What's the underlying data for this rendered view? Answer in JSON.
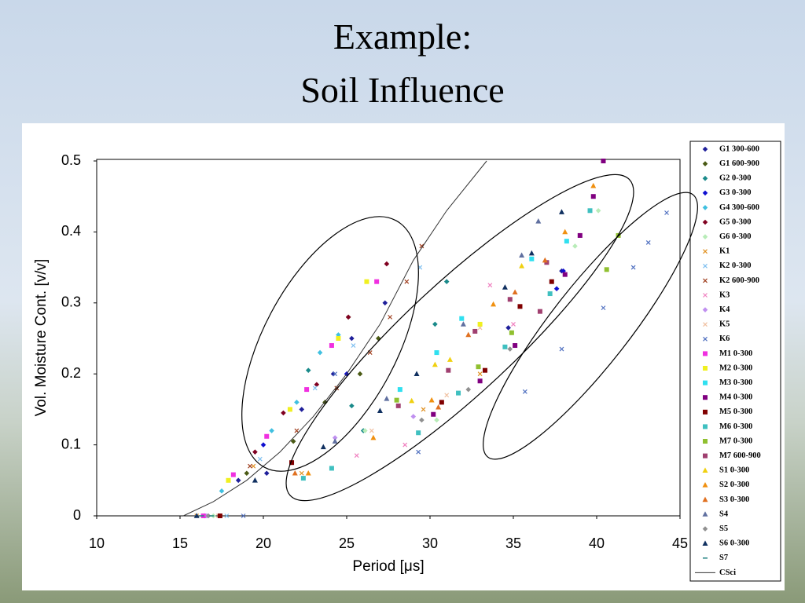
{
  "slide_title": [
    "Example:",
    "Soil Influence"
  ],
  "chart_data": {
    "type": "scatter",
    "ylabel": "Vol. Moisture Cont. [v/v]",
    "xlabel": "Period [μs]",
    "xlim": [
      10,
      45
    ],
    "ylim": [
      0,
      0.5
    ],
    "xticks": [
      10,
      15,
      20,
      25,
      30,
      35,
      40,
      45
    ],
    "yticks": [
      0,
      0.1,
      0.2,
      0.3,
      0.4,
      0.5
    ],
    "legend": "right",
    "series": [
      {
        "name": "G1 300-600",
        "color": "#1f1f9a",
        "marker": "diamond",
        "x": [
          18.5,
          20.2,
          22.3,
          24.2,
          25.3,
          27.3,
          34.7,
          37.9
        ],
        "values": [
          0.05,
          0.06,
          0.15,
          0.2,
          0.25,
          0.3,
          0.265,
          0.345
        ]
      },
      {
        "name": "G1 600-900",
        "color": "#4a5a14",
        "marker": "diamond",
        "x": [
          19,
          21.8,
          23.7,
          25.8,
          26.9,
          25.1
        ],
        "values": [
          0.06,
          0.105,
          0.16,
          0.2,
          0.25,
          0.28
        ]
      },
      {
        "name": "G2 0-300",
        "color": "#1a8a8a",
        "marker": "diamond",
        "x": [
          22.7,
          25.3,
          26,
          30.3,
          31
        ],
        "values": [
          0.205,
          0.155,
          0.12,
          0.27,
          0.33
        ]
      },
      {
        "name": "G3 0-300",
        "color": "#1010d0",
        "marker": "diamond",
        "x": [
          16.5,
          20,
          25,
          37.6,
          38
        ],
        "values": [
          0,
          0.1,
          0.2,
          0.32,
          0.345
        ]
      },
      {
        "name": "G4 300-600",
        "color": "#40c0e0",
        "marker": "diamond",
        "x": [
          17.5,
          20.5,
          22,
          23.4,
          24.5
        ],
        "values": [
          0.035,
          0.12,
          0.16,
          0.23,
          0.255
        ]
      },
      {
        "name": "G5 0-300",
        "color": "#800020",
        "marker": "diamond",
        "x": [
          19.5,
          21.2,
          23.2,
          25.1,
          27.4
        ],
        "values": [
          0.09,
          0.145,
          0.185,
          0.28,
          0.355
        ]
      },
      {
        "name": "G6 0-300",
        "color": "#b8ecb8",
        "marker": "diamond",
        "x": [
          17,
          26.1,
          30.4,
          38.7,
          40.1
        ],
        "values": [
          0,
          0.12,
          0.135,
          0.38,
          0.43
        ]
      },
      {
        "name": "K1",
        "color": "#e09020",
        "marker": "x",
        "x": [
          16,
          19.4,
          22.3,
          29.6,
          33
        ],
        "values": [
          0,
          0.07,
          0.06,
          0.15,
          0.2
        ]
      },
      {
        "name": "K2 0-300",
        "color": "#80c0f0",
        "marker": "x",
        "x": [
          17.8,
          19.8,
          23.1,
          25.4,
          29.4
        ],
        "values": [
          0,
          0.08,
          0.18,
          0.24,
          0.35
        ]
      },
      {
        "name": "K2 600-900",
        "color": "#a04020",
        "marker": "x",
        "x": [
          19.2,
          22,
          24.4,
          26.4,
          27.6,
          29.5,
          28.6
        ],
        "values": [
          0.07,
          0.12,
          0.18,
          0.23,
          0.28,
          0.38,
          0.33
        ]
      },
      {
        "name": "K3",
        "color": "#f080c0",
        "marker": "x",
        "x": [
          25.6,
          28.5,
          33.6,
          35
        ],
        "values": [
          0.085,
          0.1,
          0.325,
          0.27
        ]
      },
      {
        "name": "K4",
        "color": "#c090f0",
        "marker": "diamond",
        "x": [
          16.6,
          24.3,
          29
        ],
        "values": [
          0,
          0.11,
          0.14
        ]
      },
      {
        "name": "K5",
        "color": "#f0c0a0",
        "marker": "x",
        "x": [
          17.3,
          26.5,
          31,
          33
        ],
        "values": [
          0,
          0.12,
          0.17,
          0.265
        ]
      },
      {
        "name": "K6",
        "color": "#5070c0",
        "marker": "x",
        "x": [
          18.8,
          24.3,
          29.3,
          35.7,
          37.9,
          40.4,
          42.2,
          43.1,
          44.2
        ],
        "values": [
          0,
          0.2,
          0.09,
          0.175,
          0.235,
          0.293,
          0.35,
          0.385,
          0.427
        ]
      },
      {
        "name": "M1 0-300",
        "color": "#f030e0",
        "marker": "square",
        "x": [
          16.4,
          18.2,
          20.2,
          22.6,
          24.1,
          26.8
        ],
        "values": [
          0,
          0.058,
          0.112,
          0.178,
          0.24,
          0.33
        ]
      },
      {
        "name": "M2 0-300",
        "color": "#f0f020",
        "marker": "square",
        "x": [
          17.9,
          21.6,
          24.5,
          26.2,
          33
        ],
        "values": [
          0.05,
          0.15,
          0.25,
          0.33,
          0.27
        ]
      },
      {
        "name": "M3 0-300",
        "color": "#30e0f0",
        "marker": "square",
        "x": [
          28.2,
          30.4,
          31.9,
          36.1,
          38.2
        ],
        "values": [
          0.178,
          0.23,
          0.278,
          0.362,
          0.387
        ]
      },
      {
        "name": "M4 0-300",
        "color": "#800080",
        "marker": "square",
        "x": [
          30.2,
          33,
          35.1,
          38.1,
          39.8,
          40.4,
          39
        ],
        "values": [
          0.143,
          0.19,
          0.24,
          0.34,
          0.45,
          0.5,
          0.395
        ]
      },
      {
        "name": "M5 0-300",
        "color": "#800000",
        "marker": "square",
        "x": [
          17.4,
          21.7,
          30.7,
          33.3,
          35.4,
          37.3
        ],
        "values": [
          0,
          0.075,
          0.16,
          0.205,
          0.295,
          0.33
        ]
      },
      {
        "name": "M6 0-300",
        "color": "#40c0c0",
        "marker": "square",
        "x": [
          22.4,
          24.1,
          29.3,
          31.7,
          34.5,
          37.2,
          39.6
        ],
        "values": [
          0.053,
          0.067,
          0.117,
          0.173,
          0.238,
          0.313,
          0.43
        ]
      },
      {
        "name": "M7 0-300",
        "color": "#90c030",
        "marker": "square",
        "x": [
          28,
          32.9,
          34.9,
          40.6,
          41.3
        ],
        "values": [
          0.163,
          0.21,
          0.258,
          0.347,
          0.395
        ]
      },
      {
        "name": "M7 600-900",
        "color": "#a04070",
        "marker": "square",
        "x": [
          28.1,
          31.1,
          32.7,
          34.8,
          36.6,
          37
        ],
        "values": [
          0.155,
          0.205,
          0.26,
          0.305,
          0.288,
          0.357
        ]
      },
      {
        "name": "S1 0-300",
        "color": "#f0d010",
        "marker": "triangle",
        "x": [
          28.9,
          30.3,
          31.2,
          35.5
        ],
        "values": [
          0.162,
          0.213,
          0.22,
          0.352
        ]
      },
      {
        "name": "S2 0-300",
        "color": "#f09010",
        "marker": "triangle",
        "x": [
          22.7,
          26.6,
          30.1,
          33.8,
          38.1,
          39.8
        ],
        "values": [
          0.06,
          0.11,
          0.163,
          0.298,
          0.4,
          0.465
        ]
      },
      {
        "name": "S3 0-300",
        "color": "#e07020",
        "marker": "triangle",
        "x": [
          21.9,
          30.5,
          32.3,
          35.1,
          36.9
        ],
        "values": [
          0.06,
          0.153,
          0.255,
          0.315,
          0.36
        ]
      },
      {
        "name": "S4",
        "color": "#6070a0",
        "marker": "triangle",
        "x": [
          24.3,
          27.4,
          32,
          35.5,
          36.5
        ],
        "values": [
          0.105,
          0.165,
          0.27,
          0.367,
          0.415
        ]
      },
      {
        "name": "S5",
        "color": "#909090",
        "marker": "diamond",
        "x": [
          16.7,
          29.5,
          32.3,
          34.8
        ],
        "values": [
          0,
          0.135,
          0.178,
          0.235
        ]
      },
      {
        "name": "S6 0-300",
        "color": "#103060",
        "marker": "triangle",
        "x": [
          16,
          19.5,
          23.6,
          27,
          29.2,
          34.5,
          37.9,
          36.1
        ],
        "values": [
          0,
          0.05,
          0.097,
          0.148,
          0.2,
          0.322,
          0.428,
          0.37
        ]
      },
      {
        "name": "S7",
        "color": "#208080",
        "marker": "dash",
        "x": [
          16.3,
          16.9
        ],
        "values": [
          0,
          0
        ]
      },
      {
        "name": "CSci",
        "color": "#333333",
        "marker": "line",
        "x": [
          15.2,
          17,
          19,
          21,
          23,
          25,
          27,
          29,
          31,
          33.4
        ],
        "values": [
          0,
          0.02,
          0.05,
          0.09,
          0.14,
          0.2,
          0.27,
          0.36,
          0.43,
          0.5
        ]
      }
    ]
  }
}
